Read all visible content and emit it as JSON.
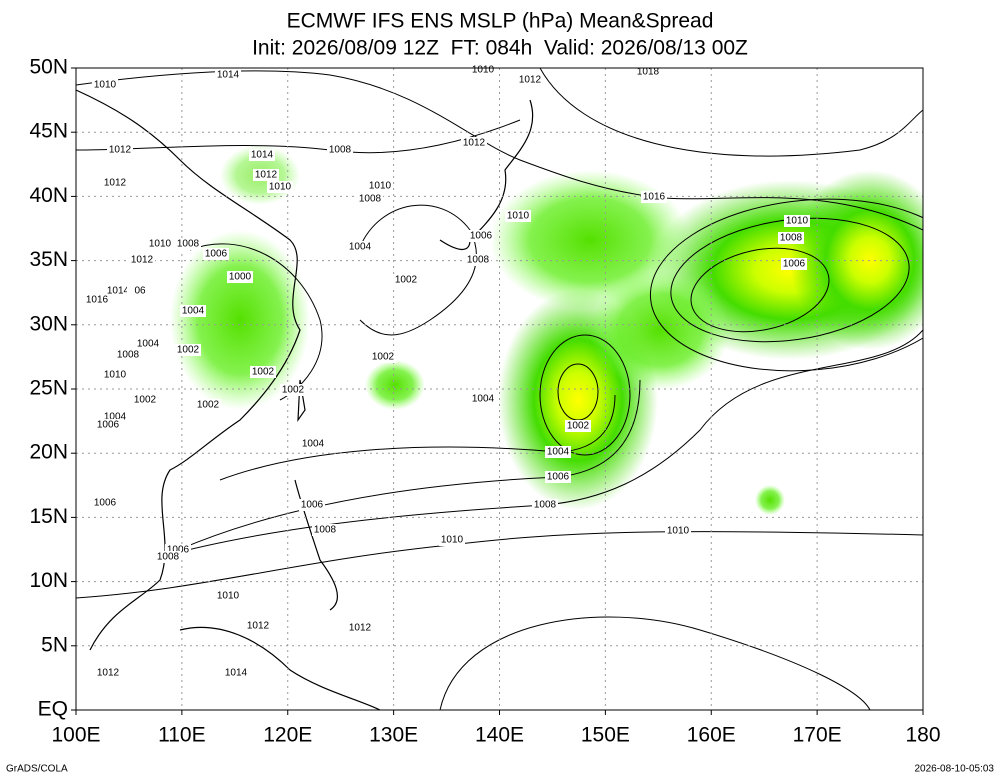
{
  "header": {
    "title": "ECMWF IFS ENS MSLP (hPa) Mean&Spread",
    "subtitle": "Init: 2026/08/09 12Z  FT: 084h  Valid: 2026/08/13 00Z"
  },
  "x_axis": {
    "labels": [
      "100E",
      "110E",
      "120E",
      "130E",
      "140E",
      "150E",
      "160E",
      "170E",
      "180"
    ]
  },
  "y_axis": {
    "labels": [
      "EQ",
      "5N",
      "10N",
      "15N",
      "20N",
      "25N",
      "30N",
      "35N",
      "40N",
      "45N",
      "50N"
    ]
  },
  "contour_labels": [
    "1010",
    "1014",
    "1010",
    "1012",
    "1018",
    "1012",
    "1014",
    "1008",
    "1012",
    "1012",
    "1012",
    "1010",
    "1010",
    "1008",
    "1016",
    "1010",
    "1010",
    "1008",
    "1006",
    "1010",
    "1008",
    "1006",
    "1004",
    "1006",
    "1008",
    "1012",
    "1000",
    "1002",
    "1014",
    "06",
    "1016",
    "1004",
    "1004",
    "1002",
    "1008",
    "1002",
    "1010",
    "1002",
    "1002",
    "1002",
    "1002",
    "1004",
    "1004",
    "1006",
    "1002",
    "1004",
    "1004",
    "1006",
    "1006",
    "1008",
    "1006",
    "1008",
    "1010",
    "1006",
    "1010",
    "1008",
    "1010",
    "1012",
    "1012",
    "1014",
    "1012"
  ],
  "footer": {
    "left": "GrADS/COLA",
    "right": "2026-08-10-05:03"
  }
}
